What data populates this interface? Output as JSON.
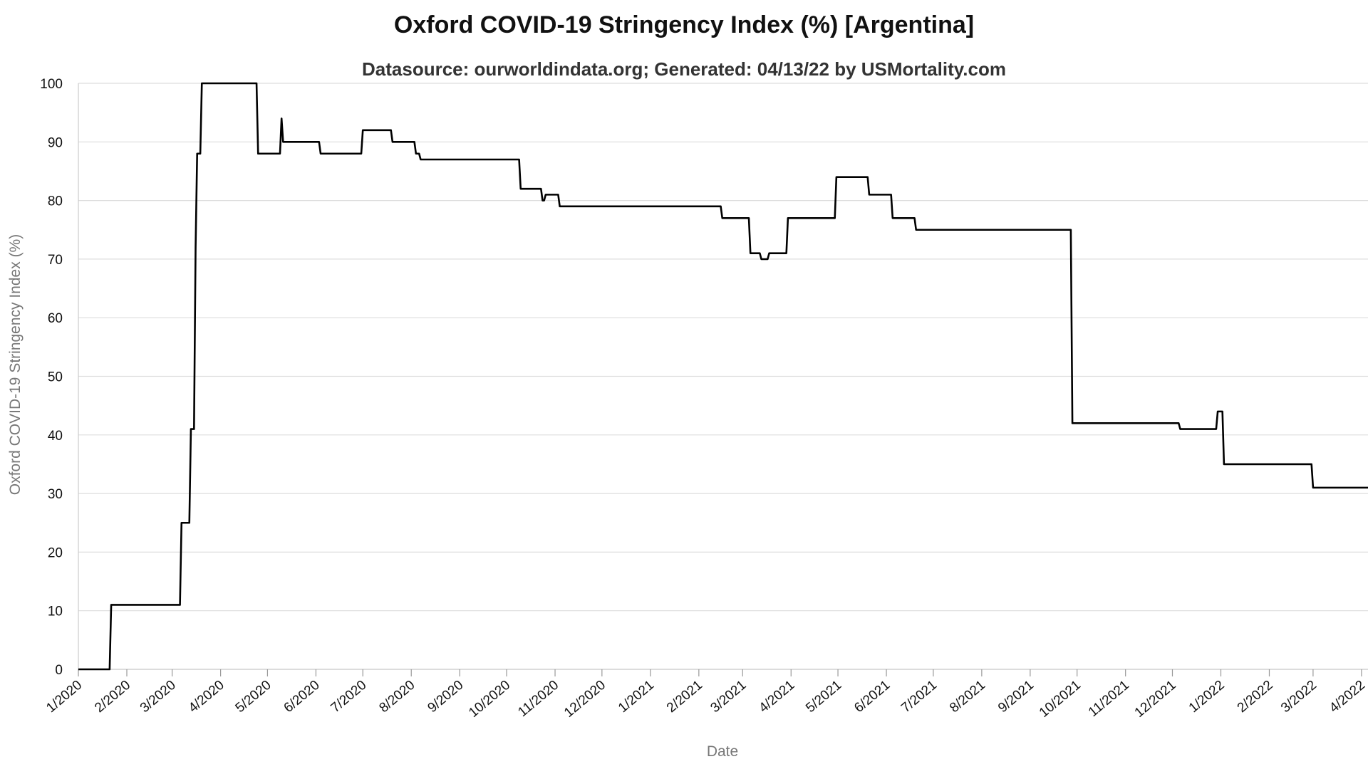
{
  "chart_data": {
    "type": "line",
    "title": "Oxford COVID-19 Stringency Index (%) [Argentina]",
    "subtitle": "Datasource: ourworldindata.org; Generated: 04/13/22 by USMortality.com",
    "xlabel": "Date",
    "ylabel": "Oxford COVID-19 Stringency Index (%)",
    "ylim": [
      0,
      100
    ],
    "yticks": [
      0,
      10,
      20,
      30,
      40,
      50,
      60,
      70,
      80,
      90,
      100
    ],
    "xlim": [
      "2020-01-01",
      "2022-04-13"
    ],
    "xticks": [
      {
        "date": "2020-01-01",
        "label": "1/2020"
      },
      {
        "date": "2020-02-01",
        "label": "2/2020"
      },
      {
        "date": "2020-03-01",
        "label": "3/2020"
      },
      {
        "date": "2020-04-01",
        "label": "4/2020"
      },
      {
        "date": "2020-05-01",
        "label": "5/2020"
      },
      {
        "date": "2020-06-01",
        "label": "6/2020"
      },
      {
        "date": "2020-07-01",
        "label": "7/2020"
      },
      {
        "date": "2020-08-01",
        "label": "8/2020"
      },
      {
        "date": "2020-09-01",
        "label": "9/2020"
      },
      {
        "date": "2020-10-01",
        "label": "10/2020"
      },
      {
        "date": "2020-11-01",
        "label": "11/2020"
      },
      {
        "date": "2020-12-01",
        "label": "12/2020"
      },
      {
        "date": "2021-01-01",
        "label": "1/2021"
      },
      {
        "date": "2021-02-01",
        "label": "2/2021"
      },
      {
        "date": "2021-03-01",
        "label": "3/2021"
      },
      {
        "date": "2021-04-01",
        "label": "4/2021"
      },
      {
        "date": "2021-05-01",
        "label": "5/2021"
      },
      {
        "date": "2021-06-01",
        "label": "6/2021"
      },
      {
        "date": "2021-07-01",
        "label": "7/2021"
      },
      {
        "date": "2021-08-01",
        "label": "8/2021"
      },
      {
        "date": "2021-09-01",
        "label": "9/2021"
      },
      {
        "date": "2021-10-01",
        "label": "10/2021"
      },
      {
        "date": "2021-11-01",
        "label": "11/2021"
      },
      {
        "date": "2021-12-01",
        "label": "12/2021"
      },
      {
        "date": "2022-01-01",
        "label": "1/2022"
      },
      {
        "date": "2022-02-01",
        "label": "2/2022"
      },
      {
        "date": "2022-03-01",
        "label": "3/2022"
      },
      {
        "date": "2022-04-01",
        "label": "4/2022"
      }
    ],
    "grid": true,
    "legend": "none",
    "series": [
      {
        "color": "#000000",
        "points": [
          [
            "2020-01-01",
            0
          ],
          [
            "2020-01-21",
            0
          ],
          [
            "2020-01-22",
            11
          ],
          [
            "2020-03-06",
            11
          ],
          [
            "2020-03-07",
            25
          ],
          [
            "2020-03-12",
            25
          ],
          [
            "2020-03-13",
            41
          ],
          [
            "2020-03-15",
            41
          ],
          [
            "2020-03-16",
            72
          ],
          [
            "2020-03-17",
            88
          ],
          [
            "2020-03-19",
            88
          ],
          [
            "2020-03-20",
            100
          ],
          [
            "2020-04-24",
            100
          ],
          [
            "2020-04-25",
            88
          ],
          [
            "2020-05-09",
            88
          ],
          [
            "2020-05-10",
            94
          ],
          [
            "2020-05-11",
            90
          ],
          [
            "2020-06-03",
            90
          ],
          [
            "2020-06-04",
            88
          ],
          [
            "2020-06-30",
            88
          ],
          [
            "2020-07-01",
            92
          ],
          [
            "2020-07-19",
            92
          ],
          [
            "2020-07-20",
            90
          ],
          [
            "2020-08-03",
            90
          ],
          [
            "2020-08-04",
            88
          ],
          [
            "2020-08-06",
            88
          ],
          [
            "2020-08-07",
            87
          ],
          [
            "2020-10-09",
            87
          ],
          [
            "2020-10-10",
            82
          ],
          [
            "2020-10-23",
            82
          ],
          [
            "2020-10-24",
            80
          ],
          [
            "2020-10-25",
            80
          ],
          [
            "2020-10-26",
            81
          ],
          [
            "2020-11-03",
            81
          ],
          [
            "2020-11-04",
            79
          ],
          [
            "2021-02-15",
            79
          ],
          [
            "2021-02-16",
            77
          ],
          [
            "2021-03-05",
            77
          ],
          [
            "2021-03-06",
            71
          ],
          [
            "2021-03-12",
            71
          ],
          [
            "2021-03-13",
            70
          ],
          [
            "2021-03-17",
            70
          ],
          [
            "2021-03-18",
            71
          ],
          [
            "2021-03-29",
            71
          ],
          [
            "2021-03-30",
            77
          ],
          [
            "2021-04-29",
            77
          ],
          [
            "2021-04-30",
            84
          ],
          [
            "2021-05-20",
            84
          ],
          [
            "2021-05-21",
            81
          ],
          [
            "2021-06-04",
            81
          ],
          [
            "2021-06-05",
            77
          ],
          [
            "2021-06-19",
            77
          ],
          [
            "2021-06-20",
            75
          ],
          [
            "2021-09-27",
            75
          ],
          [
            "2021-09-28",
            42
          ],
          [
            "2021-12-05",
            42
          ],
          [
            "2021-12-06",
            41
          ],
          [
            "2021-12-29",
            41
          ],
          [
            "2021-12-30",
            44
          ],
          [
            "2022-01-02",
            44
          ],
          [
            "2022-01-03",
            35
          ],
          [
            "2022-02-28",
            35
          ],
          [
            "2022-03-01",
            31
          ],
          [
            "2022-04-13",
            31
          ]
        ]
      }
    ]
  }
}
